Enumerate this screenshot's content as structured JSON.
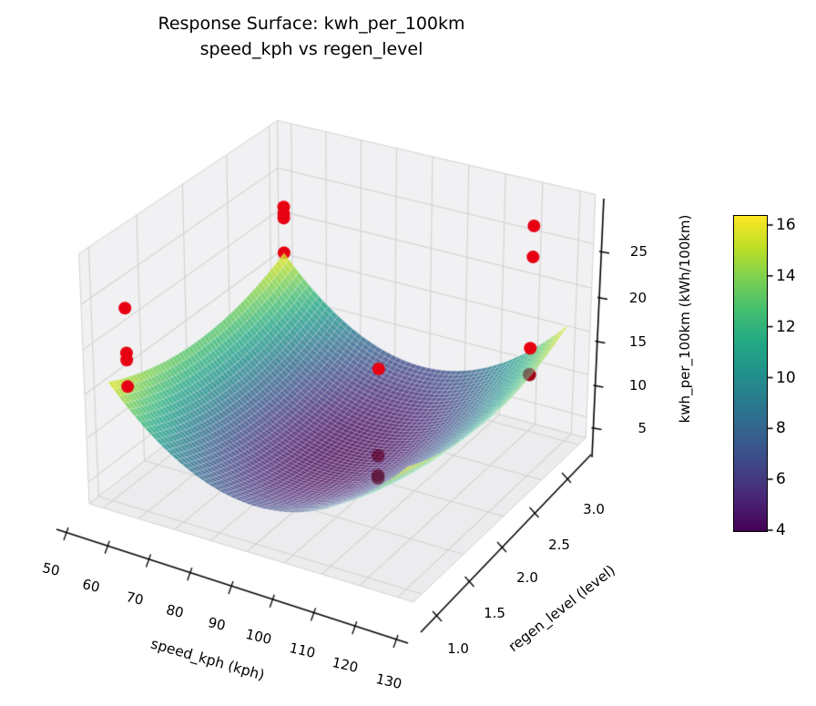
{
  "title": {
    "line1": "Response Surface: kwh_per_100km",
    "line2": "speed_kph vs regen_level"
  },
  "axes": {
    "x": {
      "label": "speed_kph (kph)",
      "ticks": [
        "50",
        "60",
        "70",
        "80",
        "90",
        "100",
        "110",
        "120",
        "130"
      ]
    },
    "y": {
      "label": "regen_level (level)",
      "ticks": [
        "1.0",
        "1.5",
        "2.0",
        "2.5",
        "3.0"
      ]
    },
    "z": {
      "label": "kwh_per_100km (kWh/100km)",
      "ticks": [
        "5",
        "10",
        "15",
        "20",
        "25"
      ]
    }
  },
  "colorbar": {
    "ticks": [
      "4",
      "6",
      "8",
      "10",
      "12",
      "14",
      "16"
    ],
    "vmin": 4.0,
    "vmax": 16.4,
    "colormap": "viridis"
  },
  "colors": {
    "scatter_point": "#e60012",
    "occluded_point_overlay": "rgba(70,0,30,0.40)",
    "pane_wall": "#f1f1f3",
    "pane_floor": "#ececee",
    "grid_line": "#d2d2d2",
    "spine": "#000000",
    "mesh_line": "rgba(255,255,255,0.38)"
  },
  "chart_data": {
    "type": "3d-surface-scatter",
    "title": "Response Surface: kwh_per_100km — speed_kph vs regen_level",
    "xlabel": "speed_kph (kph)",
    "ylabel": "regen_level (level)",
    "zlabel": "kwh_per_100km (kWh/100km)",
    "xlim": [
      46,
      134
    ],
    "ylim": [
      0.9,
      3.1
    ],
    "zlim": [
      2.5,
      30.5
    ],
    "x_ticks": [
      50,
      60,
      70,
      80,
      90,
      100,
      110,
      120,
      130
    ],
    "y_ticks": [
      1.0,
      1.5,
      2.0,
      2.5,
      3.0
    ],
    "z_ticks": [
      5,
      10,
      15,
      20,
      25
    ],
    "surface": {
      "formula": "kwh_per_100km = 4.0 + 0.0058*(speed_kph-90)^2 + 2.8*(regen_level-2.0)^2",
      "base": 4.0,
      "coef_x": 0.0058,
      "x0": 90,
      "coef_y": 2.8,
      "y0": 2.0,
      "x_range": [
        50,
        130
      ],
      "y_range": [
        1.0,
        3.0
      ],
      "value_min": 4.0,
      "value_max": 16.1
    },
    "scatter": [
      {
        "speed_kph": 50,
        "regen_level": 3.0,
        "kwh_per_100km": 21.5,
        "layer": "front"
      },
      {
        "speed_kph": 50,
        "regen_level": 3.0,
        "kwh_per_100km": 20.7,
        "layer": "front"
      },
      {
        "speed_kph": 50,
        "regen_level": 3.0,
        "kwh_per_100km": 20.2,
        "layer": "front"
      },
      {
        "speed_kph": 50,
        "regen_level": 3.0,
        "kwh_per_100km": 16.1,
        "layer": "tangent"
      },
      {
        "speed_kph": 50,
        "regen_level": 1.2,
        "kwh_per_100km": 22.8,
        "layer": "front"
      },
      {
        "speed_kph": 50,
        "regen_level": 1.2,
        "kwh_per_100km": 17.8,
        "layer": "front"
      },
      {
        "speed_kph": 50,
        "regen_level": 1.2,
        "kwh_per_100km": 17.0,
        "layer": "front"
      },
      {
        "speed_kph": 50,
        "regen_level": 1.2,
        "kwh_per_100km": 14.0,
        "layer": "front"
      },
      {
        "speed_kph": 100,
        "regen_level": 2.0,
        "kwh_per_100km": 15.4,
        "layer": "front"
      },
      {
        "speed_kph": 100,
        "regen_level": 2.0,
        "kwh_per_100km": 5.4,
        "layer": "behind"
      },
      {
        "speed_kph": 100,
        "regen_level": 2.0,
        "kwh_per_100km": 3.1,
        "layer": "behind"
      },
      {
        "speed_kph": 100,
        "regen_level": 2.0,
        "kwh_per_100km": 2.8,
        "layer": "behind"
      },
      {
        "speed_kph": 120,
        "regen_level": 3.0,
        "kwh_per_100km": 26.3,
        "layer": "front"
      },
      {
        "speed_kph": 120,
        "regen_level": 3.0,
        "kwh_per_100km": 22.8,
        "layer": "front"
      },
      {
        "speed_kph": 120,
        "regen_level": 3.0,
        "kwh_per_100km": 12.3,
        "layer": "front"
      },
      {
        "speed_kph": 120,
        "regen_level": 3.0,
        "kwh_per_100km": 9.2,
        "layer": "behind"
      }
    ],
    "viridis_stops": [
      "#440154",
      "#482475",
      "#414487",
      "#355f8d",
      "#2a788e",
      "#21918c",
      "#22a884",
      "#44bf70",
      "#7ad151",
      "#bddf26",
      "#fde725"
    ],
    "legend_position": "none",
    "grid": true
  }
}
